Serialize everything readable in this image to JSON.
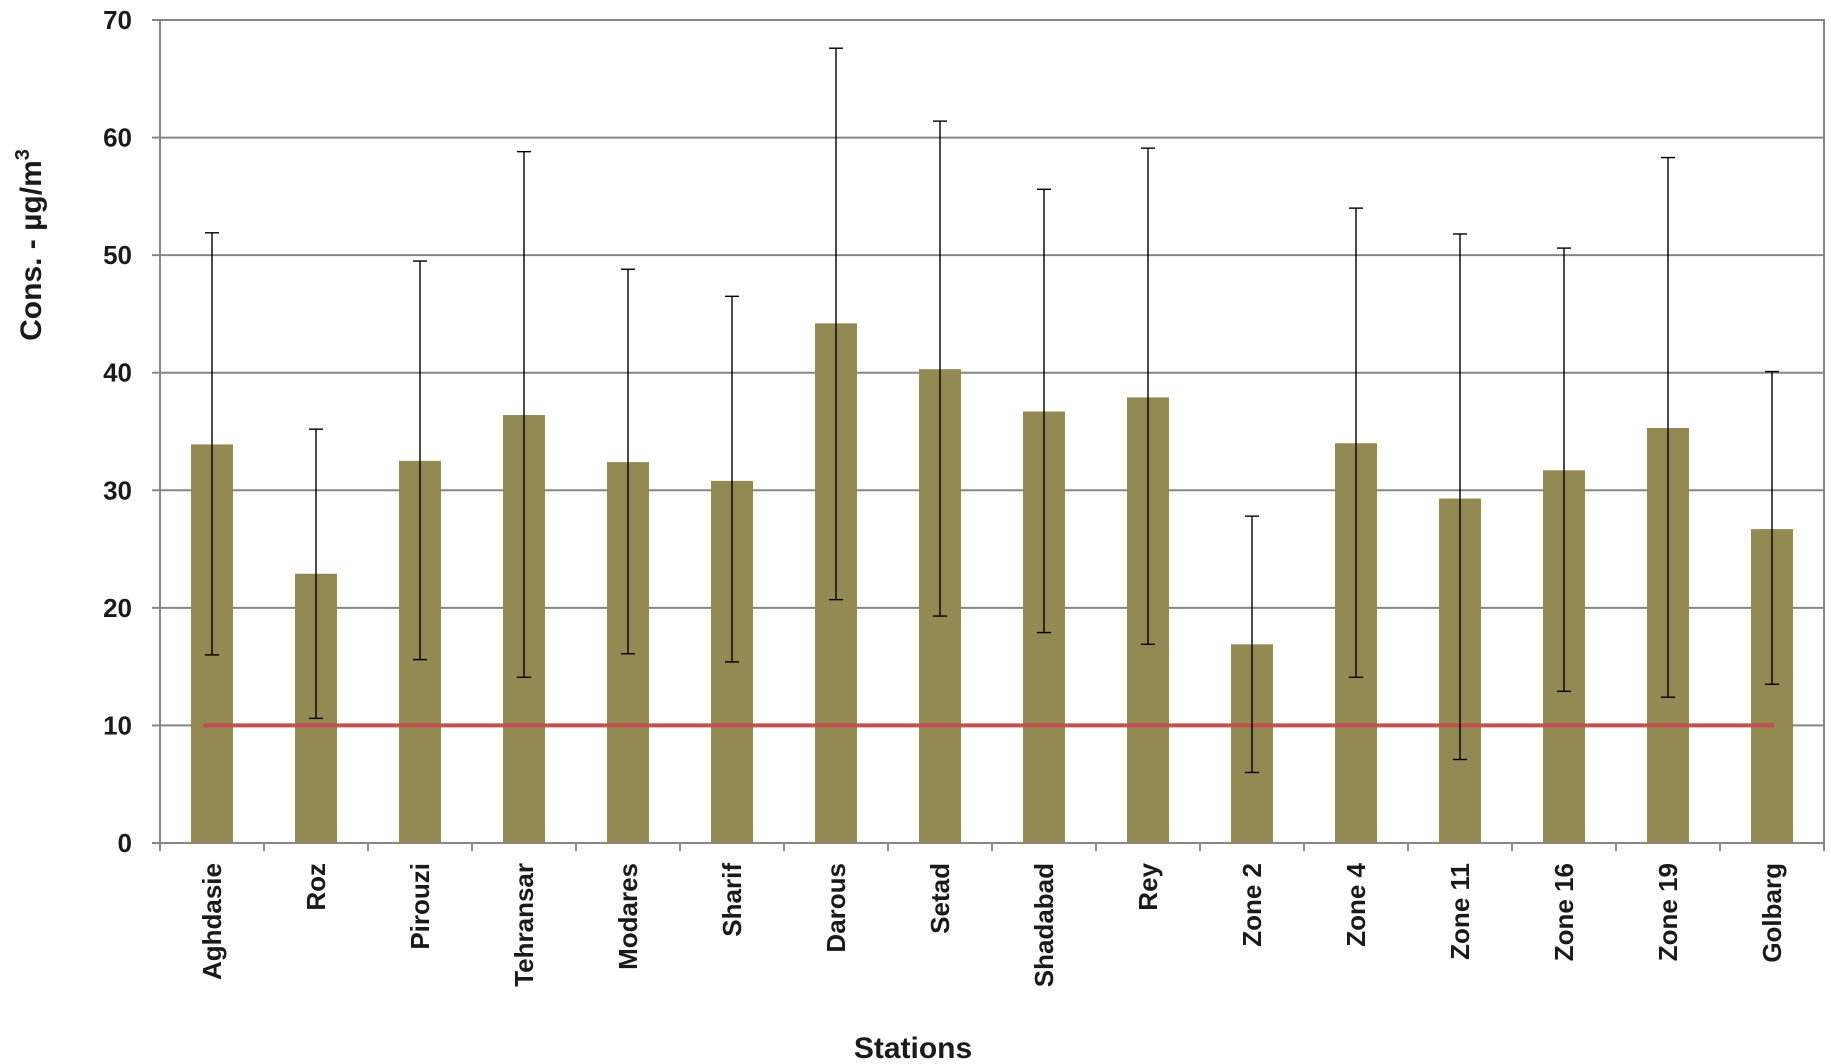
{
  "chart_data": {
    "type": "bar",
    "title": "",
    "xlabel": "Stations",
    "ylabel": "Cons. - µg/m",
    "ylabel_superscript": "3",
    "ylim": [
      0,
      70
    ],
    "yticks": [
      0,
      10,
      20,
      30,
      40,
      50,
      60,
      70
    ],
    "grid": true,
    "legend": "none",
    "categories": [
      "Aghdasie",
      "Roz",
      "Pirouzi",
      "Tehransar",
      "Modares",
      "Sharif",
      "Darous",
      "Setad",
      "Shadabad",
      "Rey",
      "Zone 2",
      "Zone 4",
      "Zone 11",
      "Zone 16",
      "Zone 19",
      "Golbarg"
    ],
    "values": [
      33.9,
      22.9,
      32.5,
      36.4,
      32.4,
      30.8,
      44.2,
      40.3,
      36.7,
      37.9,
      16.9,
      34.0,
      29.3,
      31.7,
      35.3,
      26.7
    ],
    "error_low": [
      16.0,
      10.6,
      15.6,
      14.1,
      16.1,
      15.4,
      20.7,
      19.3,
      17.9,
      16.9,
      6.0,
      14.1,
      7.1,
      12.9,
      12.4,
      13.5
    ],
    "error_high": [
      51.9,
      35.2,
      49.5,
      58.8,
      48.8,
      46.5,
      67.6,
      61.4,
      55.6,
      59.1,
      27.8,
      54.0,
      51.8,
      50.6,
      58.3,
      40.1
    ],
    "reference_line": 10,
    "colors": {
      "bar": "#938953",
      "reference_line": "#c0504d",
      "error_bar": "#000000",
      "grid": "#868686",
      "axis": "#868686"
    }
  }
}
